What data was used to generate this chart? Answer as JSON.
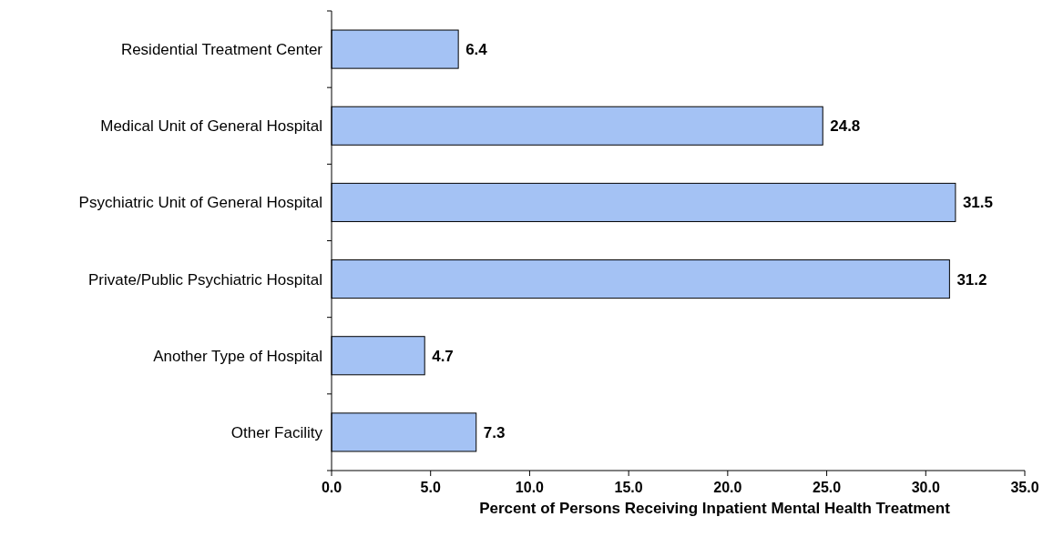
{
  "chart_data": {
    "type": "bar",
    "orientation": "horizontal",
    "xlabel": "Percent of Persons Receiving Inpatient Mental Health Treatment",
    "categories": [
      "Residential Treatment Center",
      "Medical Unit of General Hospital",
      "Psychiatric Unit of General Hospital",
      "Private/Public Psychiatric Hospital",
      "Another Type of Hospital",
      "Other Facility"
    ],
    "values": [
      6.4,
      24.8,
      31.5,
      31.2,
      4.7,
      7.3
    ],
    "color": "#a4c2f4",
    "xlim": [
      0,
      35
    ],
    "xticks": [
      {
        "value": 0,
        "label": "0.0"
      },
      {
        "value": 5,
        "label": "5.0"
      },
      {
        "value": 10,
        "label": "10.0"
      },
      {
        "value": 15,
        "label": "15.0"
      },
      {
        "value": 20,
        "label": "20.0"
      },
      {
        "value": 25,
        "label": "25.0"
      },
      {
        "value": 30,
        "label": "30.0"
      },
      {
        "value": 35,
        "label": "35.0"
      }
    ],
    "data_labels": true
  }
}
